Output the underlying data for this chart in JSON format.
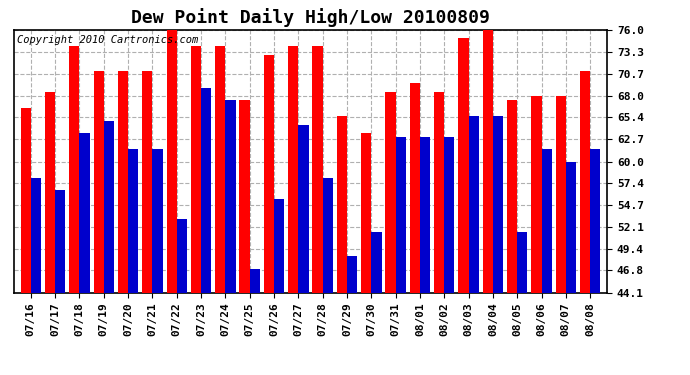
{
  "title": "Dew Point Daily High/Low 20100809",
  "copyright": "Copyright 2010 Cartronics.com",
  "dates": [
    "07/16",
    "07/17",
    "07/18",
    "07/19",
    "07/20",
    "07/21",
    "07/22",
    "07/23",
    "07/24",
    "07/25",
    "07/26",
    "07/27",
    "07/28",
    "07/29",
    "07/30",
    "07/31",
    "08/01",
    "08/02",
    "08/03",
    "08/04",
    "08/05",
    "08/06",
    "08/07",
    "08/08"
  ],
  "highs": [
    66.5,
    68.5,
    74.0,
    71.0,
    71.0,
    71.0,
    76.0,
    74.0,
    74.0,
    67.5,
    73.0,
    74.0,
    74.0,
    65.5,
    63.5,
    68.5,
    69.5,
    68.5,
    75.0,
    76.0,
    67.5,
    68.0,
    68.0,
    71.0
  ],
  "lows": [
    58.0,
    56.5,
    63.5,
    65.0,
    61.5,
    61.5,
    53.0,
    69.0,
    67.5,
    47.0,
    55.5,
    64.5,
    58.0,
    48.5,
    51.5,
    63.0,
    63.0,
    63.0,
    65.5,
    65.5,
    51.5,
    61.5,
    60.0,
    61.5
  ],
  "high_color": "#ff0000",
  "low_color": "#0000cc",
  "bg_color": "#ffffff",
  "plot_bg_color": "#ffffff",
  "grid_color": "#b0b0b0",
  "yticks": [
    44.1,
    46.8,
    49.4,
    52.1,
    54.7,
    57.4,
    60.0,
    62.7,
    65.4,
    68.0,
    70.7,
    73.3,
    76.0
  ],
  "ymin": 44.1,
  "ymax": 76.0,
  "title_fontsize": 13,
  "tick_fontsize": 8,
  "copyright_fontsize": 7.5
}
